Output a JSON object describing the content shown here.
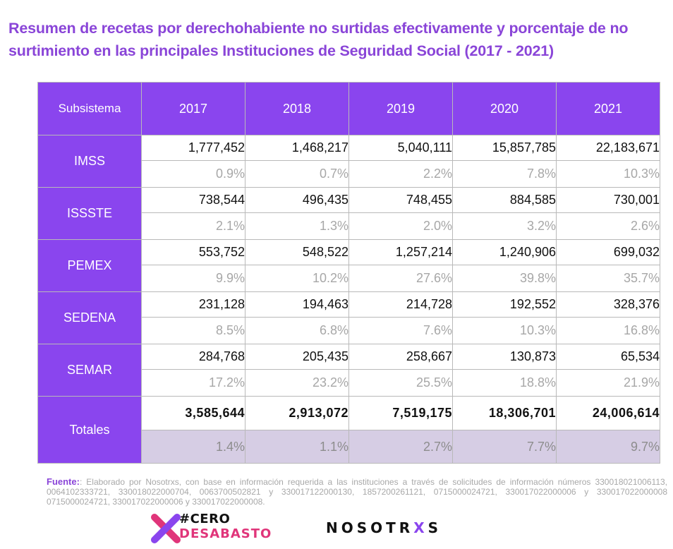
{
  "title": "Resumen de recetas por derechohabiente no surtidas efectivamente y porcentaje de no surtimiento  en las principales Instituciones de Seguridad Social (2017 - 2021)",
  "table": {
    "header": [
      "Subsistema",
      "2017",
      "2018",
      "2019",
      "2020",
      "2021"
    ],
    "rows": [
      {
        "label": "IMSS",
        "values": [
          "1,777,452",
          "1,468,217",
          "5,040,111",
          "15,857,785",
          "22,183,671"
        ],
        "percents": [
          "0.9%",
          "0.7%",
          "2.2%",
          "7.8%",
          "10.3%"
        ]
      },
      {
        "label": "ISSSTE",
        "values": [
          "738,544",
          "496,435",
          "748,455",
          "884,585",
          "730,001"
        ],
        "percents": [
          "2.1%",
          "1.3%",
          "2.0%",
          "3.2%",
          "2.6%"
        ]
      },
      {
        "label": "PEMEX",
        "values": [
          "553,752",
          "548,522",
          "1,257,214",
          "1,240,906",
          "699,032"
        ],
        "percents": [
          "9.9%",
          "10.2%",
          "27.6%",
          "39.8%",
          "35.7%"
        ]
      },
      {
        "label": "SEDENA",
        "values": [
          "231,128",
          "194,463",
          "214,728",
          "192,552",
          "328,376"
        ],
        "percents": [
          "8.5%",
          "6.8%",
          "7.6%",
          "10.3%",
          "16.8%"
        ]
      },
      {
        "label": "SEMAR",
        "values": [
          "284,768",
          "205,435",
          "258,667",
          "130,873",
          "65,534"
        ],
        "percents": [
          "17.2%",
          "23.2%",
          "25.5%",
          "18.8%",
          "21.9%"
        ]
      }
    ],
    "totals": {
      "label": "Totales",
      "values": [
        "3,585,644",
        "2,913,072",
        "7,519,175",
        "18,306,701",
        "24,006,614"
      ],
      "percents": [
        "1.4%",
        "1.1%",
        "2.7%",
        "7.7%",
        "9.7%"
      ]
    }
  },
  "source": {
    "label": "Fuente:",
    "text": ": Elaborado por Nosotrxs, con base en información requerida a las instituciones a través de solicitudes de información números 330018021006113,  0064102333721, 330018022000704, 0063700502821 y 330017122000130, 1857200261121, 0715000024721, 330017022000006 y 330017022000008 0715000024721, 330017022000006 y 330017022000008."
  },
  "logos": {
    "cero_line1": "#CERO",
    "cero_line2": "DESABASTO",
    "nosotrxs_main": "NOSOTR",
    "nosotrxs_x": "X",
    "nosotrxs_end": "S"
  },
  "colors": {
    "accent": "#8a45ee",
    "title": "#8a45d8",
    "totals_pct_bg": "#d6cde4",
    "logo_pink": "#e0357a"
  }
}
